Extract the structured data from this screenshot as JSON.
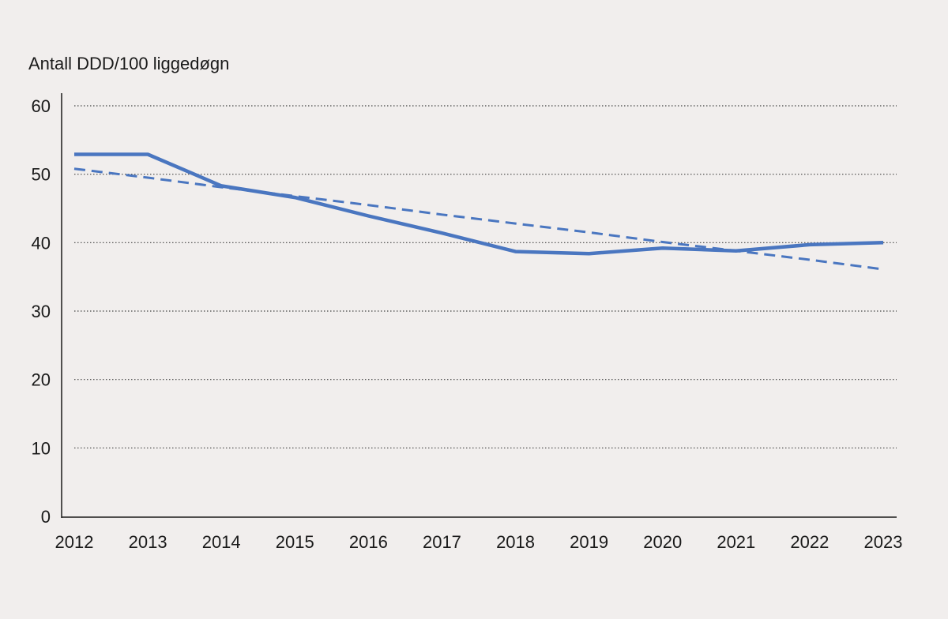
{
  "chart_data": {
    "type": "line",
    "ylabel": "Antall DDD/100 liggedøgn",
    "xlabel": "",
    "title": "",
    "x": [
      "2012",
      "2013",
      "2014",
      "2015",
      "2016",
      "2017",
      "2018",
      "2019",
      "2020",
      "2021",
      "2022",
      "2023"
    ],
    "ylim": [
      0,
      60
    ],
    "yticks": [
      "0",
      "10",
      "20",
      "30",
      "40",
      "50",
      "60"
    ],
    "grid": "horizontal-dotted",
    "series": [
      {
        "style": "solid",
        "color": "#4a76c0",
        "values": [
          52.9,
          52.9,
          48.3,
          46.6,
          43.9,
          41.4,
          38.7,
          38.4,
          39.2,
          38.8,
          39.7,
          40.0
        ]
      },
      {
        "style": "dashed",
        "color": "#4a76c0",
        "values": [
          50.8,
          49.5,
          48.1,
          46.8,
          45.5,
          44.1,
          42.8,
          41.5,
          40.1,
          38.8,
          37.5,
          36.1
        ]
      }
    ]
  }
}
